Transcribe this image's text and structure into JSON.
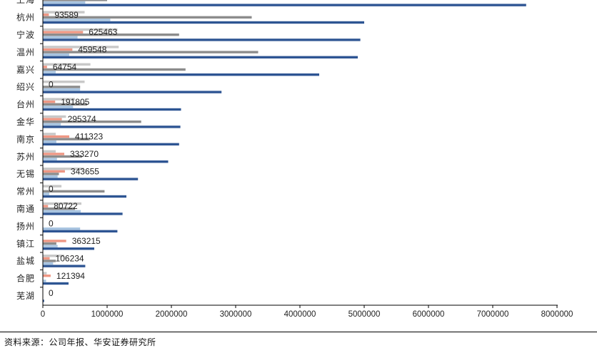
{
  "chart_data": {
    "type": "bar",
    "orientation": "horizontal",
    "categories": [
      "上海",
      "杭州",
      "宁波",
      "温州",
      "嘉兴",
      "绍兴",
      "台州",
      "金华",
      "南京",
      "苏州",
      "无锡",
      "常州",
      "南通",
      "扬州",
      "镇江",
      "盐城",
      "合肥",
      "芜湖"
    ],
    "series": [
      {
        "color": "#2e5593",
        "values": [
          7520000,
          5000000,
          4940000,
          4900000,
          4300000,
          2780000,
          2150000,
          2140000,
          2120000,
          1950000,
          1480000,
          1300000,
          1240000,
          1160000,
          800000,
          660000,
          400000,
          20000
        ]
      },
      {
        "color": "#a8c4e0",
        "values": [
          660000,
          1050000,
          540000,
          410000,
          200000,
          580000,
          470000,
          280000,
          210000,
          220000,
          230000,
          100000,
          590000,
          580000,
          230000,
          160000,
          50000,
          0
        ]
      },
      {
        "color": "#8c8c8c",
        "values": [
          1000000,
          3250000,
          2120000,
          3350000,
          2220000,
          580000,
          690000,
          1530000,
          730000,
          610000,
          250000,
          960000,
          500000,
          0,
          210000,
          200000,
          0,
          0
        ]
      },
      {
        "color": "#ee9784",
        "values": [
          0,
          93589,
          625463,
          459548,
          64754,
          0,
          191805,
          295374,
          411323,
          333270,
          343655,
          0,
          80722,
          0,
          363215,
          106234,
          121394,
          0
        ]
      },
      {
        "color": "#c8c8c8",
        "values": [
          1560000,
          650000,
          1160000,
          1180000,
          740000,
          650000,
          500000,
          360000,
          200000,
          200000,
          640000,
          290000,
          600000,
          0,
          0,
          330000,
          60000,
          0
        ]
      }
    ],
    "data_labels": [
      "",
      "93589",
      "625463",
      "459548",
      "64754",
      "0",
      "191805",
      "295374",
      "411323",
      "333270",
      "343655",
      "0",
      "80722",
      "0",
      "363215",
      "106234",
      "121394",
      "0"
    ],
    "xlim": [
      0,
      8000000
    ],
    "xticks": [
      "0",
      "1000000",
      "2000000",
      "3000000",
      "4000000",
      "5000000",
      "6000000",
      "7000000",
      "8000000"
    ]
  },
  "footer": {
    "source": "资料来源：公司年报、华安证券研究所"
  }
}
